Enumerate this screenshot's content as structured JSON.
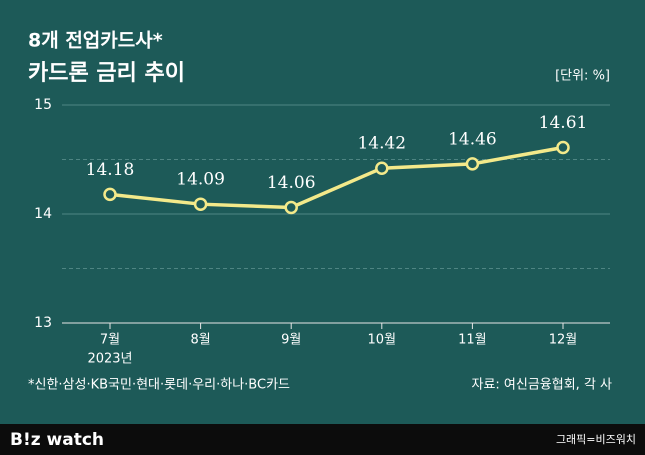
{
  "chart_data": {
    "type": "line",
    "title": "8개 전업카드사*",
    "subtitle": "카드론 금리 추이",
    "unit": "[단위: %]",
    "categories": [
      "7월",
      "8월",
      "9월",
      "10월",
      "11월",
      "12월"
    ],
    "x_sublabel": "2023년",
    "values": [
      14.18,
      14.09,
      14.06,
      14.42,
      14.46,
      14.61
    ],
    "color": "#f3e98a",
    "ylim": [
      13,
      15
    ],
    "yticks": [
      13,
      14,
      15
    ],
    "minor_yticks": [
      13.5,
      14.5
    ],
    "grid": true,
    "footnote": "*신한·삼성·KB국민·현대·롯데·우리·하나·BC카드",
    "source": "자료: 여신금융협회, 각 사",
    "logo": "B!z watch",
    "credit": "그래픽=비즈워치"
  }
}
